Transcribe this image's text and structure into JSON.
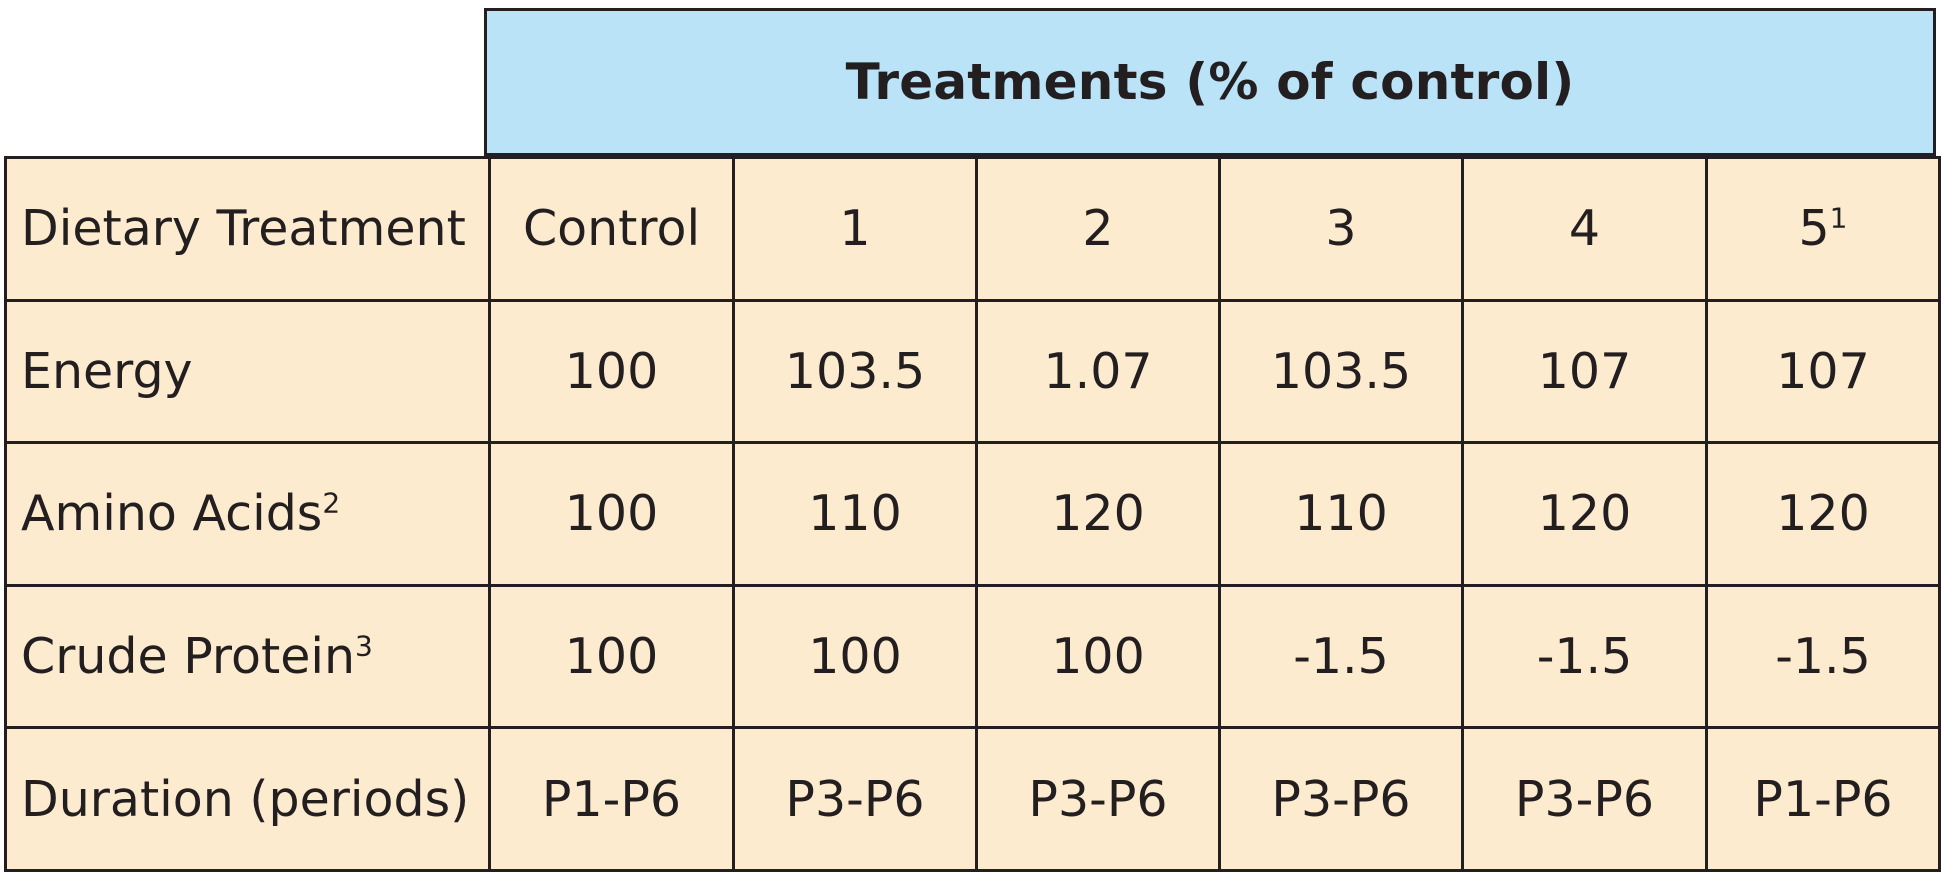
{
  "header": {
    "title": "Treatments (% of control)"
  },
  "table": {
    "column_headers": {
      "label": "Dietary Treatment",
      "cols": [
        {
          "text": "Control",
          "sup": ""
        },
        {
          "text": "1",
          "sup": ""
        },
        {
          "text": "2",
          "sup": ""
        },
        {
          "text": "3",
          "sup": ""
        },
        {
          "text": "4",
          "sup": ""
        },
        {
          "text": "5",
          "sup": "1"
        }
      ]
    },
    "rows": [
      {
        "label": "Energy",
        "label_sup": "",
        "cells": [
          "100",
          "103.5",
          "1.07",
          "103.5",
          "107",
          "107"
        ]
      },
      {
        "label": "Amino Acids",
        "label_sup": "2",
        "cells": [
          "100",
          "110",
          "120",
          "110",
          "120",
          "120"
        ]
      },
      {
        "label": "Crude Protein",
        "label_sup": "3",
        "cells": [
          "100",
          "100",
          "100",
          "-1.5",
          "-1.5",
          "-1.5"
        ]
      },
      {
        "label": "Duration (periods)",
        "label_sup": "",
        "cells": [
          "P1-P6",
          "P3-P6",
          "P3-P6",
          "P3-P6",
          "P3-P6",
          "P1-P6"
        ]
      }
    ]
  },
  "colors": {
    "header_fill": "#bae3f7",
    "cell_fill": "#fcebce",
    "border": "#231f20"
  }
}
